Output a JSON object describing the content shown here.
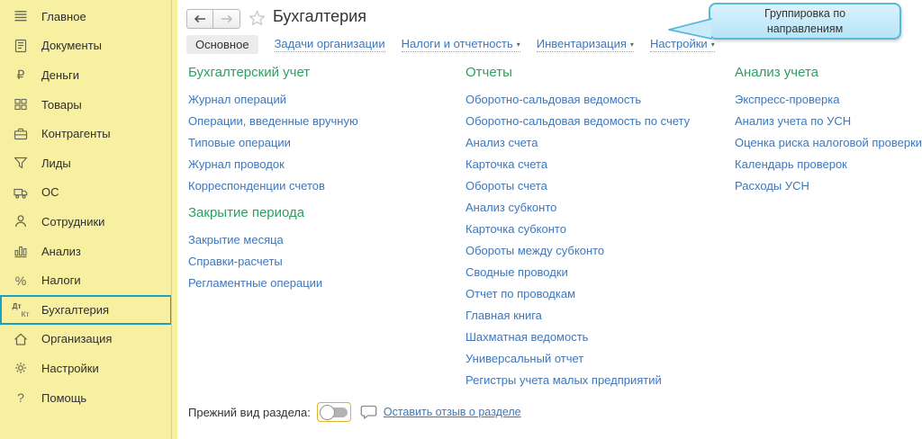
{
  "sidebar": {
    "items": [
      {
        "name": "sidebar-item-main",
        "icon": "menu-icon",
        "label": "Главное"
      },
      {
        "name": "sidebar-item-documents",
        "icon": "document-icon",
        "label": "Документы"
      },
      {
        "name": "sidebar-item-money",
        "icon": "ruble-icon",
        "label": "Деньги"
      },
      {
        "name": "sidebar-item-goods",
        "icon": "goods-icon",
        "label": "Товары"
      },
      {
        "name": "sidebar-item-counterparties",
        "icon": "briefcase-icon",
        "label": "Контрагенты"
      },
      {
        "name": "sidebar-item-leads",
        "icon": "funnel-icon",
        "label": "Лиды"
      },
      {
        "name": "sidebar-item-fixed-assets",
        "icon": "truck-icon",
        "label": "ОС"
      },
      {
        "name": "sidebar-item-employees",
        "icon": "person-icon",
        "label": "Сотрудники"
      },
      {
        "name": "sidebar-item-analysis",
        "icon": "chart-icon",
        "label": "Анализ"
      },
      {
        "name": "sidebar-item-taxes",
        "icon": "percent-icon",
        "label": "Налоги"
      },
      {
        "name": "sidebar-item-accounting",
        "icon": "dt-kt-icon",
        "label": "Бухгалтерия",
        "selected": true
      },
      {
        "name": "sidebar-item-organization",
        "icon": "house-icon",
        "label": "Организация"
      },
      {
        "name": "sidebar-item-settings",
        "icon": "gear-icon",
        "label": "Настройки"
      },
      {
        "name": "sidebar-item-help",
        "icon": "question-icon",
        "label": "Помощь"
      }
    ]
  },
  "header": {
    "title": "Бухгалтерия",
    "tabs": [
      {
        "name": "tab-main",
        "label": "Основное",
        "selected": true
      },
      {
        "name": "tab-organization-tasks",
        "label": "Задачи организации"
      },
      {
        "name": "tab-taxes-reporting",
        "label": "Налоги и отчетность",
        "dropdown": true
      },
      {
        "name": "tab-inventory",
        "label": "Инвентаризация",
        "dropdown": true
      },
      {
        "name": "tab-settings",
        "label": "Настройки",
        "dropdown": true
      }
    ],
    "tooltip_text": "Группировка по направлениям"
  },
  "main": {
    "columns": [
      {
        "sections": [
          {
            "title": "Бухгалтерский учет",
            "links": [
              "Журнал операций",
              "Операции, введенные вручную",
              "Типовые операции",
              "Журнал проводок",
              "Корреспонденции счетов"
            ]
          },
          {
            "title": "Закрытие периода",
            "links": [
              "Закрытие месяца",
              "Справки-расчеты",
              "Регламентные операции"
            ]
          }
        ]
      },
      {
        "sections": [
          {
            "title": "Отчеты",
            "links": [
              "Оборотно-сальдовая ведомость",
              "Оборотно-сальдовая ведомость по счету",
              "Анализ счета",
              "Карточка счета",
              "Обороты счета",
              "Анализ субконто",
              "Карточка субконто",
              "Обороты между субконто",
              "Сводные проводки",
              "Отчет по проводкам",
              "Главная книга",
              "Шахматная ведомость",
              "Универсальный отчет",
              "Регистры учета малых предприятий"
            ]
          }
        ]
      },
      {
        "sections": [
          {
            "title": "Анализ учета",
            "links": [
              "Экспресс-проверка",
              "Анализ учета по УСН",
              "Оценка риска налоговой проверки",
              "Календарь проверок",
              "Расходы УСН"
            ]
          }
        ]
      }
    ]
  },
  "footer": {
    "toggle_label": "Прежний вид раздела:",
    "toggle_state": "off",
    "feedback_link": "Оставить отзыв о разделе"
  },
  "colors": {
    "sidebar_bg": "#f8f0a1",
    "selection_teal": "#17a2c8",
    "section_green": "#2da05f",
    "link_blue": "#3e77bb",
    "tooltip_border": "#58b8d9",
    "tooltip_bg": "#cdeefb",
    "toggle_focus_border": "#e2b32c"
  }
}
